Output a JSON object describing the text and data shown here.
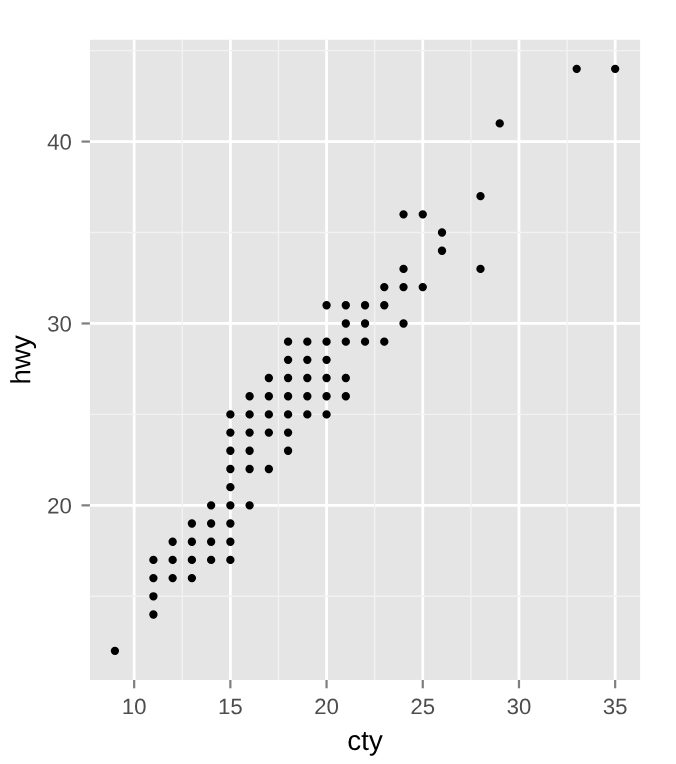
{
  "chart_data": {
    "type": "scatter",
    "xlabel": "cty",
    "ylabel": "hwy",
    "x": [
      9,
      11,
      11,
      11,
      11,
      12,
      12,
      12,
      13,
      13,
      13,
      13,
      14,
      14,
      14,
      14,
      15,
      15,
      15,
      15,
      15,
      15,
      15,
      15,
      15,
      16,
      16,
      16,
      16,
      16,
      16,
      17,
      17,
      17,
      17,
      17,
      18,
      18,
      18,
      18,
      18,
      18,
      18,
      19,
      19,
      19,
      19,
      19,
      20,
      20,
      20,
      20,
      20,
      20,
      21,
      21,
      21,
      21,
      21,
      22,
      22,
      22,
      23,
      23,
      23,
      24,
      24,
      24,
      24,
      25,
      25,
      26,
      26,
      28,
      28,
      29,
      33,
      35
    ],
    "values": [
      12,
      17,
      16,
      15,
      14,
      18,
      17,
      16,
      19,
      18,
      17,
      16,
      20,
      19,
      18,
      17,
      25,
      24,
      23,
      22,
      21,
      20,
      19,
      18,
      17,
      26,
      25,
      24,
      23,
      22,
      20,
      27,
      26,
      25,
      24,
      22,
      29,
      28,
      27,
      26,
      25,
      24,
      23,
      29,
      28,
      27,
      26,
      25,
      31,
      29,
      28,
      27,
      26,
      25,
      31,
      30,
      29,
      27,
      26,
      31,
      30,
      29,
      31,
      29,
      32,
      30,
      32,
      33,
      36,
      32,
      36,
      35,
      34,
      33,
      37,
      41,
      44,
      44
    ],
    "color": "#000000",
    "marker": "circle",
    "xlim": [
      7.7,
      36.3
    ],
    "ylim": [
      10.4,
      45.6
    ],
    "xticks": [
      10,
      15,
      20,
      25,
      30,
      35
    ],
    "yticks": [
      20,
      30,
      40
    ],
    "grid": true
  }
}
